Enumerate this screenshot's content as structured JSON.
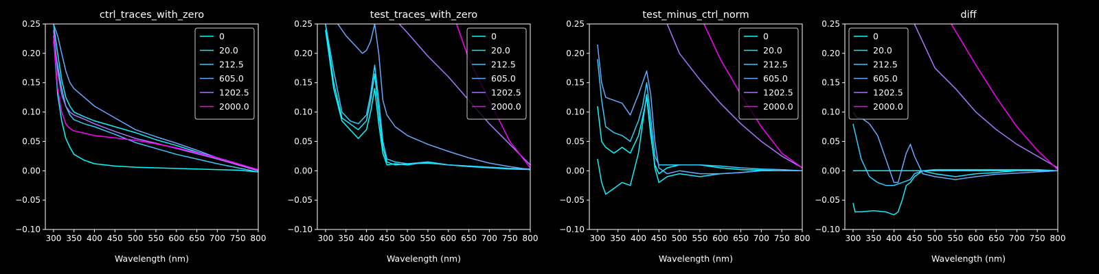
{
  "chart_data": [
    {
      "type": "line",
      "title": "ctrl_traces_with_zero",
      "xlabel": "Wavelength (nm)",
      "ylabel": "",
      "xlim": [
        280,
        800
      ],
      "ylim": [
        -0.1,
        0.25
      ],
      "xticks": [
        "300",
        "350",
        "400",
        "450",
        "500",
        "550",
        "600",
        "650",
        "700",
        "750",
        "800"
      ],
      "yticks": [
        "−0.10",
        "−0.05",
        "0.00",
        "0.05",
        "0.10",
        "0.15",
        "0.20",
        "0.25"
      ],
      "legend_position": "top-right",
      "series": [
        {
          "name": "0",
          "color": "#00ffff",
          "x": [
            300,
            310,
            320,
            330,
            340,
            350,
            375,
            400,
            450,
            500,
            550,
            600,
            650,
            700,
            750,
            800
          ],
          "values": [
            0.23,
            0.13,
            0.085,
            0.055,
            0.04,
            0.028,
            0.018,
            0.012,
            0.008,
            0.006,
            0.005,
            0.004,
            0.003,
            0.002,
            0.001,
            -0.002
          ]
        },
        {
          "name": "20.0",
          "color": "#11eeff",
          "x": [
            300,
            310,
            320,
            330,
            340,
            350,
            375,
            400,
            450,
            500,
            550,
            600,
            650,
            700,
            750,
            800
          ],
          "values": [
            0.25,
            0.2,
            0.155,
            0.125,
            0.11,
            0.1,
            0.092,
            0.085,
            0.075,
            0.065,
            0.053,
            0.043,
            0.032,
            0.022,
            0.012,
            0.0
          ]
        },
        {
          "name": "212.5",
          "color": "#33ccff",
          "x": [
            300,
            310,
            320,
            330,
            340,
            350,
            375,
            400,
            450,
            500,
            550,
            600,
            650,
            700,
            750,
            800
          ],
          "values": [
            0.22,
            0.18,
            0.14,
            0.11,
            0.095,
            0.087,
            0.08,
            0.075,
            0.062,
            0.048,
            0.038,
            0.028,
            0.02,
            0.012,
            0.005,
            -0.002
          ]
        },
        {
          "name": "605.0",
          "color": "#66aaff",
          "x": [
            300,
            310,
            320,
            330,
            340,
            350,
            375,
            400,
            450,
            500,
            550,
            600,
            650,
            700,
            750,
            800
          ],
          "values": [
            0.25,
            0.23,
            0.2,
            0.17,
            0.15,
            0.14,
            0.125,
            0.11,
            0.09,
            0.07,
            0.058,
            0.047,
            0.035,
            0.022,
            0.012,
            0.001
          ]
        },
        {
          "name": "1202.5",
          "color": "#aa77ff",
          "x": [
            300,
            310,
            320,
            330,
            340,
            350,
            375,
            400,
            450,
            500,
            550,
            600,
            650,
            700,
            750,
            800
          ],
          "values": [
            0.24,
            0.17,
            0.13,
            0.11,
            0.1,
            0.095,
            0.088,
            0.08,
            0.067,
            0.055,
            0.047,
            0.038,
            0.029,
            0.02,
            0.01,
            0.0
          ]
        },
        {
          "name": "2000.0",
          "color": "#ff00ff",
          "x": [
            300,
            310,
            320,
            330,
            340,
            350,
            375,
            400,
            450,
            500,
            550,
            600,
            650,
            700,
            750,
            800
          ],
          "values": [
            0.23,
            0.14,
            0.1,
            0.08,
            0.072,
            0.068,
            0.064,
            0.06,
            0.056,
            0.052,
            0.046,
            0.039,
            0.031,
            0.022,
            0.012,
            0.002
          ]
        }
      ]
    },
    {
      "type": "line",
      "title": "test_traces_with_zero",
      "xlabel": "Wavelength (nm)",
      "ylabel": "",
      "xlim": [
        280,
        800
      ],
      "ylim": [
        -0.1,
        0.25
      ],
      "xticks": [
        "300",
        "350",
        "400",
        "450",
        "500",
        "550",
        "600",
        "650",
        "700",
        "750",
        "800"
      ],
      "yticks": [
        "−0.10",
        "−0.05",
        "0.00",
        "0.05",
        "0.10",
        "0.15",
        "0.20",
        "0.25"
      ],
      "legend_position": "top-right",
      "series": [
        {
          "name": "0",
          "color": "#00ffff",
          "x": [
            300,
            320,
            340,
            360,
            380,
            400,
            410,
            420,
            430,
            440,
            450,
            470,
            500,
            550,
            600,
            650,
            700,
            750,
            800
          ],
          "values": [
            0.24,
            0.14,
            0.085,
            0.07,
            0.055,
            0.07,
            0.1,
            0.14,
            0.08,
            0.03,
            0.01,
            0.012,
            0.01,
            0.015,
            0.01,
            0.008,
            0.006,
            0.004,
            0.003
          ]
        },
        {
          "name": "20.0",
          "color": "#11eeff",
          "x": [
            300,
            320,
            340,
            360,
            380,
            400,
            410,
            420,
            430,
            440,
            450,
            470,
            500,
            550,
            600,
            650,
            700,
            750,
            800
          ],
          "values": [
            0.25,
            0.15,
            0.09,
            0.08,
            0.07,
            0.085,
            0.12,
            0.165,
            0.1,
            0.04,
            0.015,
            0.01,
            0.012,
            0.013,
            0.01,
            0.007,
            0.005,
            0.003,
            0.002
          ]
        },
        {
          "name": "212.5",
          "color": "#33ccff",
          "x": [
            300,
            320,
            340,
            360,
            380,
            400,
            410,
            420,
            430,
            440,
            450,
            470,
            500,
            550,
            600,
            650,
            700,
            750,
            800
          ],
          "values": [
            0.25,
            0.17,
            0.1,
            0.085,
            0.08,
            0.095,
            0.13,
            0.18,
            0.12,
            0.05,
            0.02,
            0.015,
            0.012,
            0.015,
            0.01,
            0.008,
            0.006,
            0.004,
            0.003
          ]
        },
        {
          "name": "605.0",
          "color": "#66aaff",
          "x": [
            330,
            350,
            370,
            390,
            400,
            410,
            420,
            430,
            440,
            450,
            470,
            500,
            550,
            600,
            650,
            700,
            750,
            800
          ],
          "values": [
            0.25,
            0.23,
            0.215,
            0.2,
            0.205,
            0.22,
            0.25,
            0.2,
            0.12,
            0.095,
            0.075,
            0.06,
            0.045,
            0.033,
            0.022,
            0.013,
            0.007,
            0.002
          ]
        },
        {
          "name": "1202.5",
          "color": "#aa77ff",
          "x": [
            480,
            500,
            550,
            600,
            650,
            700,
            750,
            800
          ],
          "values": [
            0.25,
            0.235,
            0.195,
            0.16,
            0.12,
            0.08,
            0.045,
            0.01
          ]
        },
        {
          "name": "2000.0",
          "color": "#ff00ff",
          "x": [
            620,
            650,
            700,
            750,
            800
          ],
          "values": [
            0.25,
            0.19,
            0.12,
            0.05,
            0.005
          ]
        }
      ]
    },
    {
      "type": "line",
      "title": "test_minus_ctrl_norm",
      "xlabel": "Wavelength (nm)",
      "ylabel": "",
      "xlim": [
        280,
        800
      ],
      "ylim": [
        -0.1,
        0.25
      ],
      "xticks": [
        "300",
        "350",
        "400",
        "450",
        "500",
        "550",
        "600",
        "650",
        "700",
        "750",
        "800"
      ],
      "yticks": [
        "−0.10",
        "−0.05",
        "0.00",
        "0.05",
        "0.10",
        "0.15",
        "0.20",
        "0.25"
      ],
      "legend_position": "top-right",
      "series": [
        {
          "name": "0",
          "color": "#00ffff",
          "x": [
            300,
            310,
            320,
            340,
            360,
            380,
            400,
            410,
            420,
            430,
            440,
            450,
            470,
            500,
            550,
            600,
            650,
            700,
            750,
            800
          ],
          "values": [
            0.11,
            0.05,
            0.04,
            0.03,
            0.04,
            0.03,
            0.06,
            0.09,
            0.125,
            0.06,
            0.01,
            -0.005,
            0.005,
            0.01,
            0.01,
            0.005,
            0.002,
            0.001,
            0.0,
            0.0
          ]
        },
        {
          "name": "20.0",
          "color": "#11eeff",
          "x": [
            300,
            310,
            320,
            340,
            360,
            380,
            400,
            410,
            420,
            430,
            440,
            450,
            470,
            500,
            550,
            600,
            650,
            700,
            750,
            800
          ],
          "values": [
            0.02,
            -0.02,
            -0.04,
            -0.03,
            -0.02,
            -0.025,
            0.03,
            0.08,
            0.13,
            0.07,
            0.005,
            -0.02,
            -0.01,
            -0.005,
            -0.01,
            -0.005,
            -0.003,
            0.0,
            0.0,
            0.0
          ]
        },
        {
          "name": "212.5",
          "color": "#33ccff",
          "x": [
            300,
            310,
            320,
            340,
            360,
            380,
            400,
            410,
            420,
            430,
            440,
            450,
            470,
            500,
            550,
            600,
            650,
            700,
            750,
            800
          ],
          "values": [
            0.19,
            0.12,
            0.075,
            0.065,
            0.06,
            0.05,
            0.085,
            0.11,
            0.15,
            0.09,
            0.025,
            0.01,
            0.01,
            0.01,
            0.01,
            0.008,
            0.005,
            0.003,
            0.002,
            0.0
          ]
        },
        {
          "name": "605.0",
          "color": "#66aaff",
          "x": [
            300,
            310,
            320,
            340,
            360,
            380,
            400,
            410,
            420,
            430,
            440,
            450,
            470,
            500,
            550,
            600,
            650,
            700,
            750,
            800
          ],
          "values": [
            0.215,
            0.15,
            0.125,
            0.12,
            0.115,
            0.095,
            0.13,
            0.15,
            0.17,
            0.13,
            0.05,
            0.005,
            -0.005,
            0.0,
            -0.005,
            -0.005,
            -0.003,
            0.0,
            0.0,
            0.0
          ]
        },
        {
          "name": "1202.5",
          "color": "#aa77ff",
          "x": [
            470,
            500,
            550,
            600,
            650,
            700,
            750,
            800
          ],
          "values": [
            0.25,
            0.2,
            0.155,
            0.115,
            0.08,
            0.05,
            0.025,
            0.005
          ]
        },
        {
          "name": "2000.0",
          "color": "#ff00ff",
          "x": [
            560,
            600,
            650,
            700,
            750,
            800
          ],
          "values": [
            0.25,
            0.19,
            0.13,
            0.075,
            0.03,
            0.005
          ]
        }
      ]
    },
    {
      "type": "line",
      "title": "diff",
      "xlabel": "Wavelength (nm)",
      "ylabel": "",
      "xlim": [
        280,
        800
      ],
      "ylim": [
        -0.1,
        0.25
      ],
      "xticks": [
        "300",
        "350",
        "400",
        "450",
        "500",
        "550",
        "600",
        "650",
        "700",
        "750",
        "800"
      ],
      "yticks": [
        "−0.10",
        "−0.05",
        "0.00",
        "0.05",
        "0.10",
        "0.15",
        "0.20",
        "0.25"
      ],
      "legend_position": "top-left",
      "series": [
        {
          "name": "0",
          "color": "#00ffff",
          "x": [
            300,
            400,
            500,
            600,
            700,
            800
          ],
          "values": [
            0.0,
            0.0,
            0.0,
            0.0,
            0.0,
            0.0
          ]
        },
        {
          "name": "20.0",
          "color": "#11eeff",
          "x": [
            300,
            305,
            320,
            350,
            380,
            400,
            410,
            420,
            430,
            440,
            450,
            470,
            500,
            550,
            600,
            650,
            700,
            750,
            800
          ],
          "values": [
            -0.055,
            -0.07,
            -0.07,
            -0.068,
            -0.07,
            -0.075,
            -0.07,
            -0.05,
            -0.025,
            -0.02,
            -0.01,
            0.0,
            -0.005,
            -0.01,
            -0.005,
            -0.003,
            0.0,
            0.0,
            0.0
          ]
        },
        {
          "name": "212.5",
          "color": "#33ccff",
          "x": [
            300,
            310,
            320,
            340,
            360,
            380,
            400,
            420,
            440,
            450,
            470,
            500,
            550,
            600,
            650,
            700,
            750,
            800
          ],
          "values": [
            0.08,
            0.05,
            0.02,
            -0.01,
            -0.02,
            -0.025,
            -0.025,
            -0.02,
            -0.015,
            -0.005,
            0.0,
            0.002,
            0.002,
            0.002,
            0.002,
            0.002,
            0.002,
            0.0
          ]
        },
        {
          "name": "605.0",
          "color": "#66aaff",
          "x": [
            300,
            310,
            320,
            340,
            360,
            380,
            400,
            410,
            420,
            430,
            440,
            450,
            470,
            500,
            550,
            600,
            650,
            700,
            750,
            800
          ],
          "values": [
            0.1,
            0.09,
            0.09,
            0.08,
            0.06,
            0.02,
            -0.02,
            -0.02,
            0.005,
            0.03,
            0.045,
            0.025,
            -0.005,
            -0.01,
            -0.015,
            -0.01,
            -0.006,
            -0.004,
            -0.002,
            0.0
          ]
        },
        {
          "name": "1202.5",
          "color": "#aa77ff",
          "x": [
            450,
            500,
            550,
            600,
            650,
            700,
            750,
            800
          ],
          "values": [
            0.25,
            0.175,
            0.14,
            0.1,
            0.07,
            0.045,
            0.025,
            0.005
          ]
        },
        {
          "name": "2000.0",
          "color": "#ff00ff",
          "x": [
            540,
            600,
            650,
            700,
            750,
            800
          ],
          "values": [
            0.25,
            0.18,
            0.125,
            0.075,
            0.035,
            0.002
          ]
        }
      ]
    }
  ]
}
